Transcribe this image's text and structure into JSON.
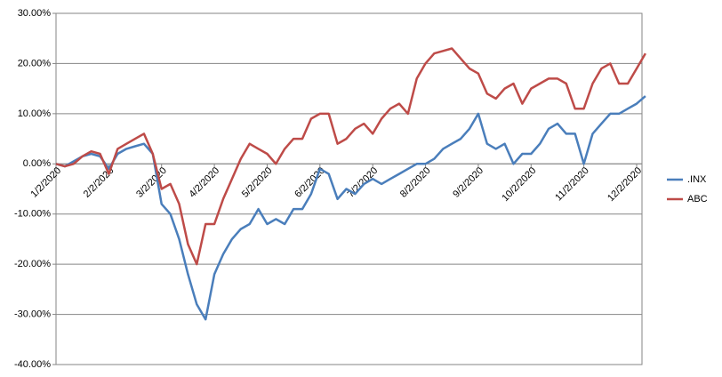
{
  "chart_data": {
    "type": "line",
    "categories": [
      "1/2/2020",
      null,
      null,
      null,
      null,
      null,
      "2/2/2020",
      null,
      null,
      null,
      null,
      null,
      "3/2/2020",
      null,
      null,
      null,
      null,
      null,
      "4/2/2020",
      null,
      null,
      null,
      null,
      null,
      "5/2/2020",
      null,
      null,
      null,
      null,
      null,
      "6/2/2020",
      null,
      null,
      null,
      null,
      null,
      "7/2/2020",
      null,
      null,
      null,
      null,
      null,
      "8/2/2020",
      null,
      null,
      null,
      null,
      null,
      "9/2/2020",
      null,
      null,
      null,
      null,
      null,
      "10/2/2020",
      null,
      null,
      null,
      null,
      null,
      "11/2/2020",
      null,
      null,
      null,
      null,
      null,
      "12/2/2020",
      null
    ],
    "series": [
      {
        "name": ".INX",
        "color": "#4a7ebb",
        "values": [
          0,
          -0.5,
          0.5,
          1.5,
          2,
          1.5,
          -1,
          2,
          3,
          3.5,
          4,
          2,
          -8,
          -10,
          -15,
          -22,
          -28,
          -31,
          -22,
          -18,
          -15,
          -13,
          -12,
          -9,
          -12,
          -11,
          -12,
          -9,
          -9,
          -6,
          -1,
          -2,
          -7,
          -5,
          -6,
          -4,
          -3,
          -4,
          -3,
          -2,
          -1,
          0,
          0,
          1,
          3,
          4,
          5,
          7,
          10,
          4,
          3,
          4,
          0,
          2,
          2,
          4,
          7,
          8,
          6,
          6,
          0,
          6,
          8,
          10,
          10,
          11,
          12,
          13.5
        ]
      },
      {
        "name": "ABC",
        "color": "#be4b48",
        "values": [
          0,
          -0.5,
          0,
          1.5,
          2.5,
          2,
          -2,
          3,
          4,
          5,
          6,
          2,
          -5,
          -4,
          -8,
          -16,
          -20,
          -12,
          -12,
          -7,
          -3,
          1,
          4,
          3,
          2,
          0,
          3,
          5,
          5,
          9,
          10,
          10,
          4,
          5,
          7,
          8,
          6,
          9,
          11,
          12,
          10,
          17,
          20,
          22,
          22.5,
          23,
          21,
          19,
          18,
          14,
          13,
          15,
          16,
          12,
          15,
          16,
          17,
          17,
          16,
          11,
          11,
          16,
          19,
          20,
          16,
          16,
          19,
          22
        ]
      }
    ],
    "ylim": [
      -40,
      30
    ],
    "yticks": [
      {
        "value": -40,
        "label": "-40.00%"
      },
      {
        "value": -30,
        "label": "-30.00%"
      },
      {
        "value": -20,
        "label": "-20.00%"
      },
      {
        "value": -10,
        "label": "-10.00%"
      },
      {
        "value": 0,
        "label": "0.00%"
      },
      {
        "value": 10,
        "label": "10.00%"
      },
      {
        "value": 20,
        "label": "20.00%"
      },
      {
        "value": 30,
        "label": "30.00%"
      }
    ],
    "grid": true,
    "legend": "right"
  }
}
